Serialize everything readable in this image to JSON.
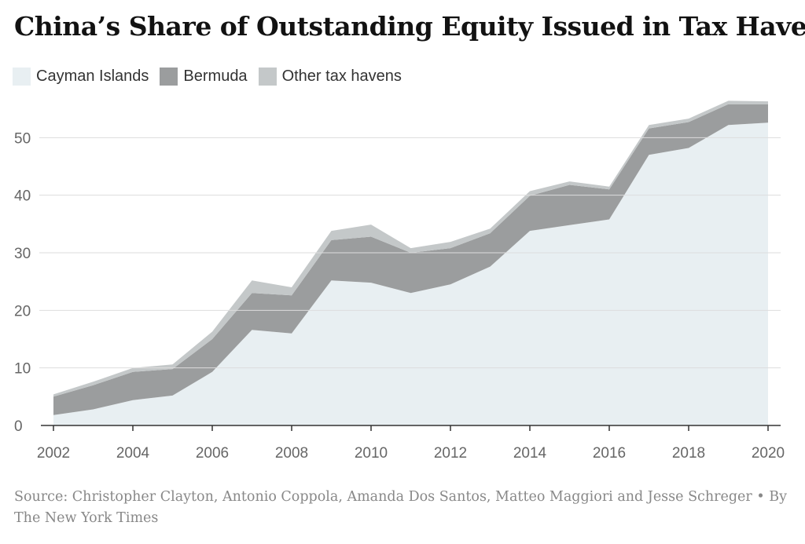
{
  "title": "China’s Share of Outstanding Equity Issued in Tax Havens",
  "source": "Source: Christopher Clayton, Antonio Coppola, Amanda Dos Santos, Matteo Maggiori and Jesse Schreger • By The New York Times",
  "chart_data": {
    "type": "area",
    "stacked": true,
    "x": [
      2002,
      2003,
      2004,
      2005,
      2006,
      2007,
      2008,
      2009,
      2010,
      2011,
      2012,
      2013,
      2014,
      2015,
      2016,
      2017,
      2018,
      2019,
      2020
    ],
    "series": [
      {
        "name": "Cayman Islands",
        "color": "#e8eff2",
        "values": [
          1.8,
          2.8,
          4.4,
          5.2,
          9.3,
          16.6,
          16.0,
          25.2,
          24.8,
          23.0,
          24.5,
          27.6,
          33.8,
          34.8,
          35.8,
          47.0,
          48.2,
          52.2,
          52.6
        ]
      },
      {
        "name": "Bermuda",
        "color": "#9b9d9e",
        "values": [
          3.2,
          4.2,
          4.9,
          4.6,
          5.7,
          6.4,
          6.6,
          7.0,
          8.0,
          7.0,
          6.3,
          5.8,
          6.1,
          7.0,
          5.2,
          4.6,
          4.5,
          3.6,
          3.2
        ]
      },
      {
        "name": "Other tax havens",
        "color": "#c4c8c9",
        "values": [
          0.4,
          0.6,
          0.7,
          0.8,
          1.3,
          2.2,
          1.4,
          1.6,
          2.1,
          0.8,
          1.1,
          0.8,
          0.8,
          0.6,
          0.5,
          0.6,
          0.6,
          0.6,
          0.5
        ]
      }
    ],
    "xticks": [
      "2002",
      "2004",
      "2006",
      "2008",
      "2010",
      "2012",
      "2014",
      "2016",
      "2018",
      "2020"
    ],
    "yticks": [
      "0",
      "10",
      "20",
      "30",
      "40",
      "50"
    ],
    "xlim": [
      2002,
      2020
    ],
    "ylim": [
      0,
      57
    ],
    "grid": true,
    "legend": "top-left"
  }
}
